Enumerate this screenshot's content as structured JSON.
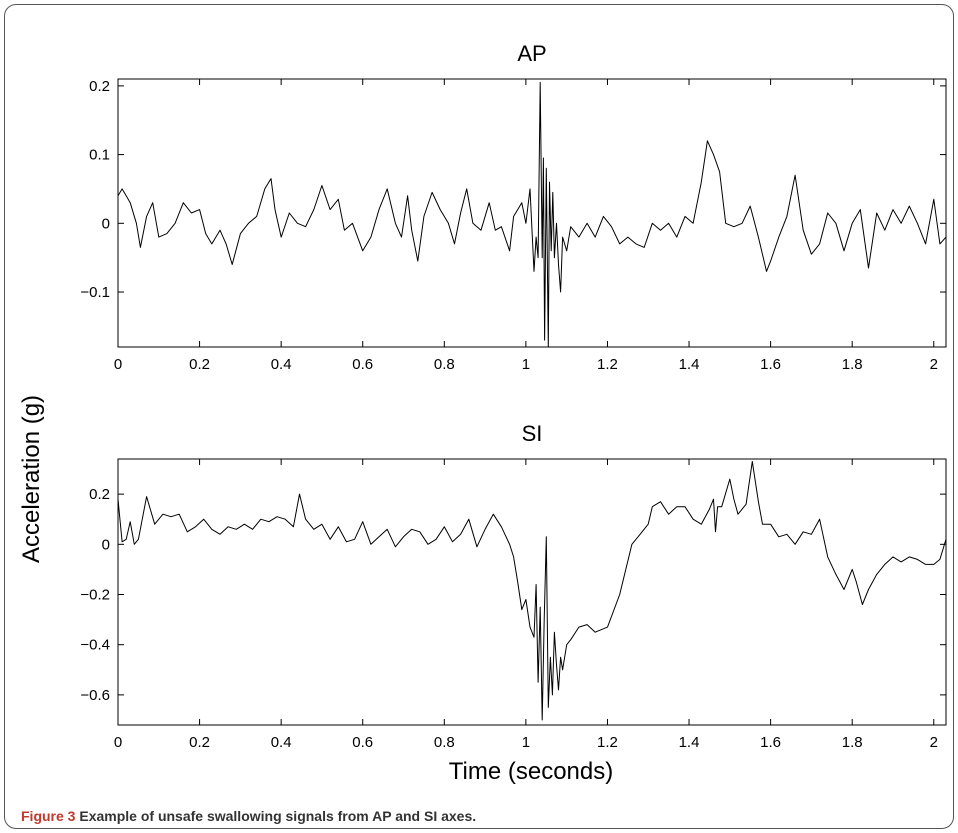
{
  "caption": {
    "label": "Figure 3",
    "text": "Example of unsafe swallowing signals from AP and SI axes."
  },
  "shared": {
    "ylabel": "Acceleration (g)",
    "xlabel": "Time (seconds)"
  },
  "chart_data": [
    {
      "type": "line",
      "title": "AP",
      "xlim": [
        0,
        2.03
      ],
      "ylim": [
        -0.18,
        0.21
      ],
      "xticks": [
        0,
        0.2,
        0.4,
        0.6,
        0.8,
        1,
        1.2,
        1.4,
        1.6,
        1.8,
        2
      ],
      "xtick_labels": [
        "0",
        "0.2",
        "0.4",
        "0.6",
        "0.8",
        "1",
        "1.2",
        "1.4",
        "1.6",
        "1.8",
        "2"
      ],
      "yticks": [
        -0.1,
        0,
        0.1,
        0.2
      ],
      "ytick_labels": [
        "-0.1",
        "0",
        "0.1",
        "0.2"
      ],
      "series": [
        {
          "x": [
            0,
            0.01,
            0.02,
            0.03,
            0.045,
            0.055,
            0.07,
            0.085,
            0.1,
            0.12,
            0.14,
            0.16,
            0.18,
            0.2,
            0.215,
            0.23,
            0.25,
            0.265,
            0.28,
            0.3,
            0.32,
            0.34,
            0.36,
            0.375,
            0.385,
            0.4,
            0.42,
            0.44,
            0.46,
            0.48,
            0.5,
            0.52,
            0.54,
            0.555,
            0.575,
            0.6,
            0.62,
            0.64,
            0.66,
            0.68,
            0.695,
            0.71,
            0.72,
            0.735,
            0.75,
            0.77,
            0.79,
            0.81,
            0.825,
            0.84,
            0.855,
            0.87,
            0.89,
            0.91,
            0.925,
            0.94,
            0.96,
            0.97,
            0.98,
            0.99,
            1.0,
            1.01,
            1.02,
            1.025,
            1.03,
            1.035,
            1.04,
            1.043,
            1.046,
            1.05,
            1.055,
            1.058,
            1.062,
            1.066,
            1.07,
            1.075,
            1.08,
            1.085,
            1.09,
            1.1,
            1.11,
            1.13,
            1.15,
            1.17,
            1.19,
            1.21,
            1.23,
            1.25,
            1.27,
            1.29,
            1.31,
            1.33,
            1.35,
            1.37,
            1.39,
            1.41,
            1.43,
            1.445,
            1.46,
            1.475,
            1.49,
            1.51,
            1.53,
            1.55,
            1.57,
            1.59,
            1.6,
            1.62,
            1.64,
            1.66,
            1.68,
            1.7,
            1.72,
            1.74,
            1.76,
            1.78,
            1.8,
            1.82,
            1.84,
            1.86,
            1.88,
            1.9,
            1.92,
            1.94,
            1.96,
            1.98,
            2.0,
            2.015,
            2.03
          ],
          "y": [
            0.04,
            0.05,
            0.04,
            0.03,
            0.0,
            -0.035,
            0.01,
            0.03,
            -0.02,
            -0.015,
            0.0,
            0.03,
            0.015,
            0.02,
            -0.015,
            -0.03,
            -0.01,
            -0.03,
            -0.06,
            -0.015,
            0.0,
            0.01,
            0.05,
            0.065,
            0.02,
            -0.02,
            0.015,
            0.0,
            -0.005,
            0.02,
            0.055,
            0.02,
            0.035,
            -0.01,
            0.0,
            -0.04,
            -0.02,
            0.02,
            0.05,
            0.0,
            -0.02,
            0.04,
            -0.01,
            -0.055,
            0.01,
            0.045,
            0.02,
            0.0,
            -0.03,
            0.015,
            0.05,
            0.0,
            -0.01,
            0.03,
            -0.01,
            -0.005,
            -0.04,
            0.01,
            0.02,
            0.03,
            0.0,
            0.05,
            -0.07,
            -0.02,
            -0.05,
            0.205,
            -0.05,
            0.095,
            -0.17,
            0.08,
            -0.18,
            0.06,
            -0.04,
            0.045,
            -0.05,
            0.0,
            -0.06,
            -0.1,
            -0.02,
            -0.04,
            -0.005,
            -0.02,
            0.0,
            -0.02,
            0.01,
            -0.005,
            -0.03,
            -0.02,
            -0.03,
            -0.035,
            0.0,
            -0.01,
            0.0,
            -0.02,
            0.01,
            0.0,
            0.06,
            0.12,
            0.1,
            0.075,
            0.0,
            -0.005,
            0.0,
            0.025,
            -0.02,
            -0.07,
            -0.055,
            -0.02,
            0.01,
            0.07,
            -0.01,
            -0.045,
            -0.03,
            0.015,
            0.0,
            -0.04,
            0.0,
            0.02,
            -0.065,
            0.015,
            -0.01,
            0.02,
            0.0,
            0.025,
            0.0,
            -0.03,
            0.035,
            -0.03,
            -0.02
          ]
        }
      ]
    },
    {
      "type": "line",
      "title": "SI",
      "xlim": [
        0,
        2.03
      ],
      "ylim": [
        -0.72,
        0.34
      ],
      "xticks": [
        0,
        0.2,
        0.4,
        0.6,
        0.8,
        1,
        1.2,
        1.4,
        1.6,
        1.8,
        2
      ],
      "xtick_labels": [
        "0",
        "0.2",
        "0.4",
        "0.6",
        "0.8",
        "1",
        "1.2",
        "1.4",
        "1.6",
        "1.8",
        "2"
      ],
      "yticks": [
        -0.6,
        -0.4,
        -0.2,
        0,
        0.2
      ],
      "ytick_labels": [
        "-0.6",
        "-0.4",
        "-0.2",
        "0",
        "0.2"
      ],
      "series": [
        {
          "x": [
            0,
            0.01,
            0.02,
            0.03,
            0.04,
            0.05,
            0.07,
            0.09,
            0.11,
            0.13,
            0.15,
            0.17,
            0.19,
            0.21,
            0.23,
            0.25,
            0.27,
            0.29,
            0.31,
            0.33,
            0.35,
            0.37,
            0.39,
            0.41,
            0.43,
            0.445,
            0.46,
            0.48,
            0.5,
            0.52,
            0.54,
            0.56,
            0.58,
            0.6,
            0.62,
            0.64,
            0.66,
            0.68,
            0.7,
            0.72,
            0.74,
            0.76,
            0.78,
            0.8,
            0.82,
            0.84,
            0.86,
            0.88,
            0.9,
            0.92,
            0.94,
            0.96,
            0.97,
            0.98,
            0.99,
            1.0,
            1.01,
            1.02,
            1.025,
            1.03,
            1.035,
            1.04,
            1.045,
            1.05,
            1.055,
            1.06,
            1.065,
            1.07,
            1.075,
            1.08,
            1.085,
            1.09,
            1.1,
            1.11,
            1.13,
            1.15,
            1.17,
            1.2,
            1.23,
            1.26,
            1.28,
            1.3,
            1.31,
            1.33,
            1.35,
            1.37,
            1.39,
            1.41,
            1.43,
            1.45,
            1.46,
            1.465,
            1.47,
            1.48,
            1.5,
            1.51,
            1.52,
            1.54,
            1.555,
            1.57,
            1.58,
            1.6,
            1.62,
            1.64,
            1.66,
            1.68,
            1.7,
            1.72,
            1.74,
            1.76,
            1.78,
            1.8,
            1.81,
            1.825,
            1.84,
            1.86,
            1.88,
            1.9,
            1.92,
            1.94,
            1.96,
            1.98,
            2.0,
            2.015,
            2.03
          ],
          "y": [
            0.18,
            0.01,
            0.02,
            0.09,
            0.0,
            0.02,
            0.19,
            0.08,
            0.12,
            0.11,
            0.12,
            0.05,
            0.07,
            0.1,
            0.06,
            0.04,
            0.07,
            0.06,
            0.08,
            0.06,
            0.1,
            0.09,
            0.11,
            0.1,
            0.07,
            0.2,
            0.1,
            0.06,
            0.08,
            0.02,
            0.07,
            0.01,
            0.02,
            0.09,
            0.0,
            0.03,
            0.06,
            -0.01,
            0.03,
            0.06,
            0.05,
            0.0,
            0.02,
            0.07,
            0.01,
            0.04,
            0.1,
            -0.01,
            0.06,
            0.12,
            0.07,
            0.0,
            -0.05,
            -0.15,
            -0.26,
            -0.22,
            -0.33,
            -0.37,
            -0.16,
            -0.55,
            -0.25,
            -0.7,
            -0.3,
            0.03,
            -0.65,
            -0.45,
            -0.6,
            -0.35,
            -0.48,
            -0.58,
            -0.45,
            -0.5,
            -0.4,
            -0.38,
            -0.33,
            -0.32,
            -0.35,
            -0.33,
            -0.2,
            0.0,
            0.04,
            0.08,
            0.15,
            0.17,
            0.12,
            0.15,
            0.15,
            0.1,
            0.08,
            0.14,
            0.18,
            0.05,
            0.15,
            0.15,
            0.26,
            0.18,
            0.12,
            0.16,
            0.33,
            0.17,
            0.08,
            0.08,
            0.03,
            0.04,
            0.0,
            0.05,
            0.04,
            0.1,
            -0.05,
            -0.12,
            -0.18,
            -0.1,
            -0.15,
            -0.24,
            -0.18,
            -0.12,
            -0.08,
            -0.05,
            -0.07,
            -0.05,
            -0.06,
            -0.08,
            -0.08,
            -0.06,
            0.02
          ]
        }
      ]
    }
  ]
}
